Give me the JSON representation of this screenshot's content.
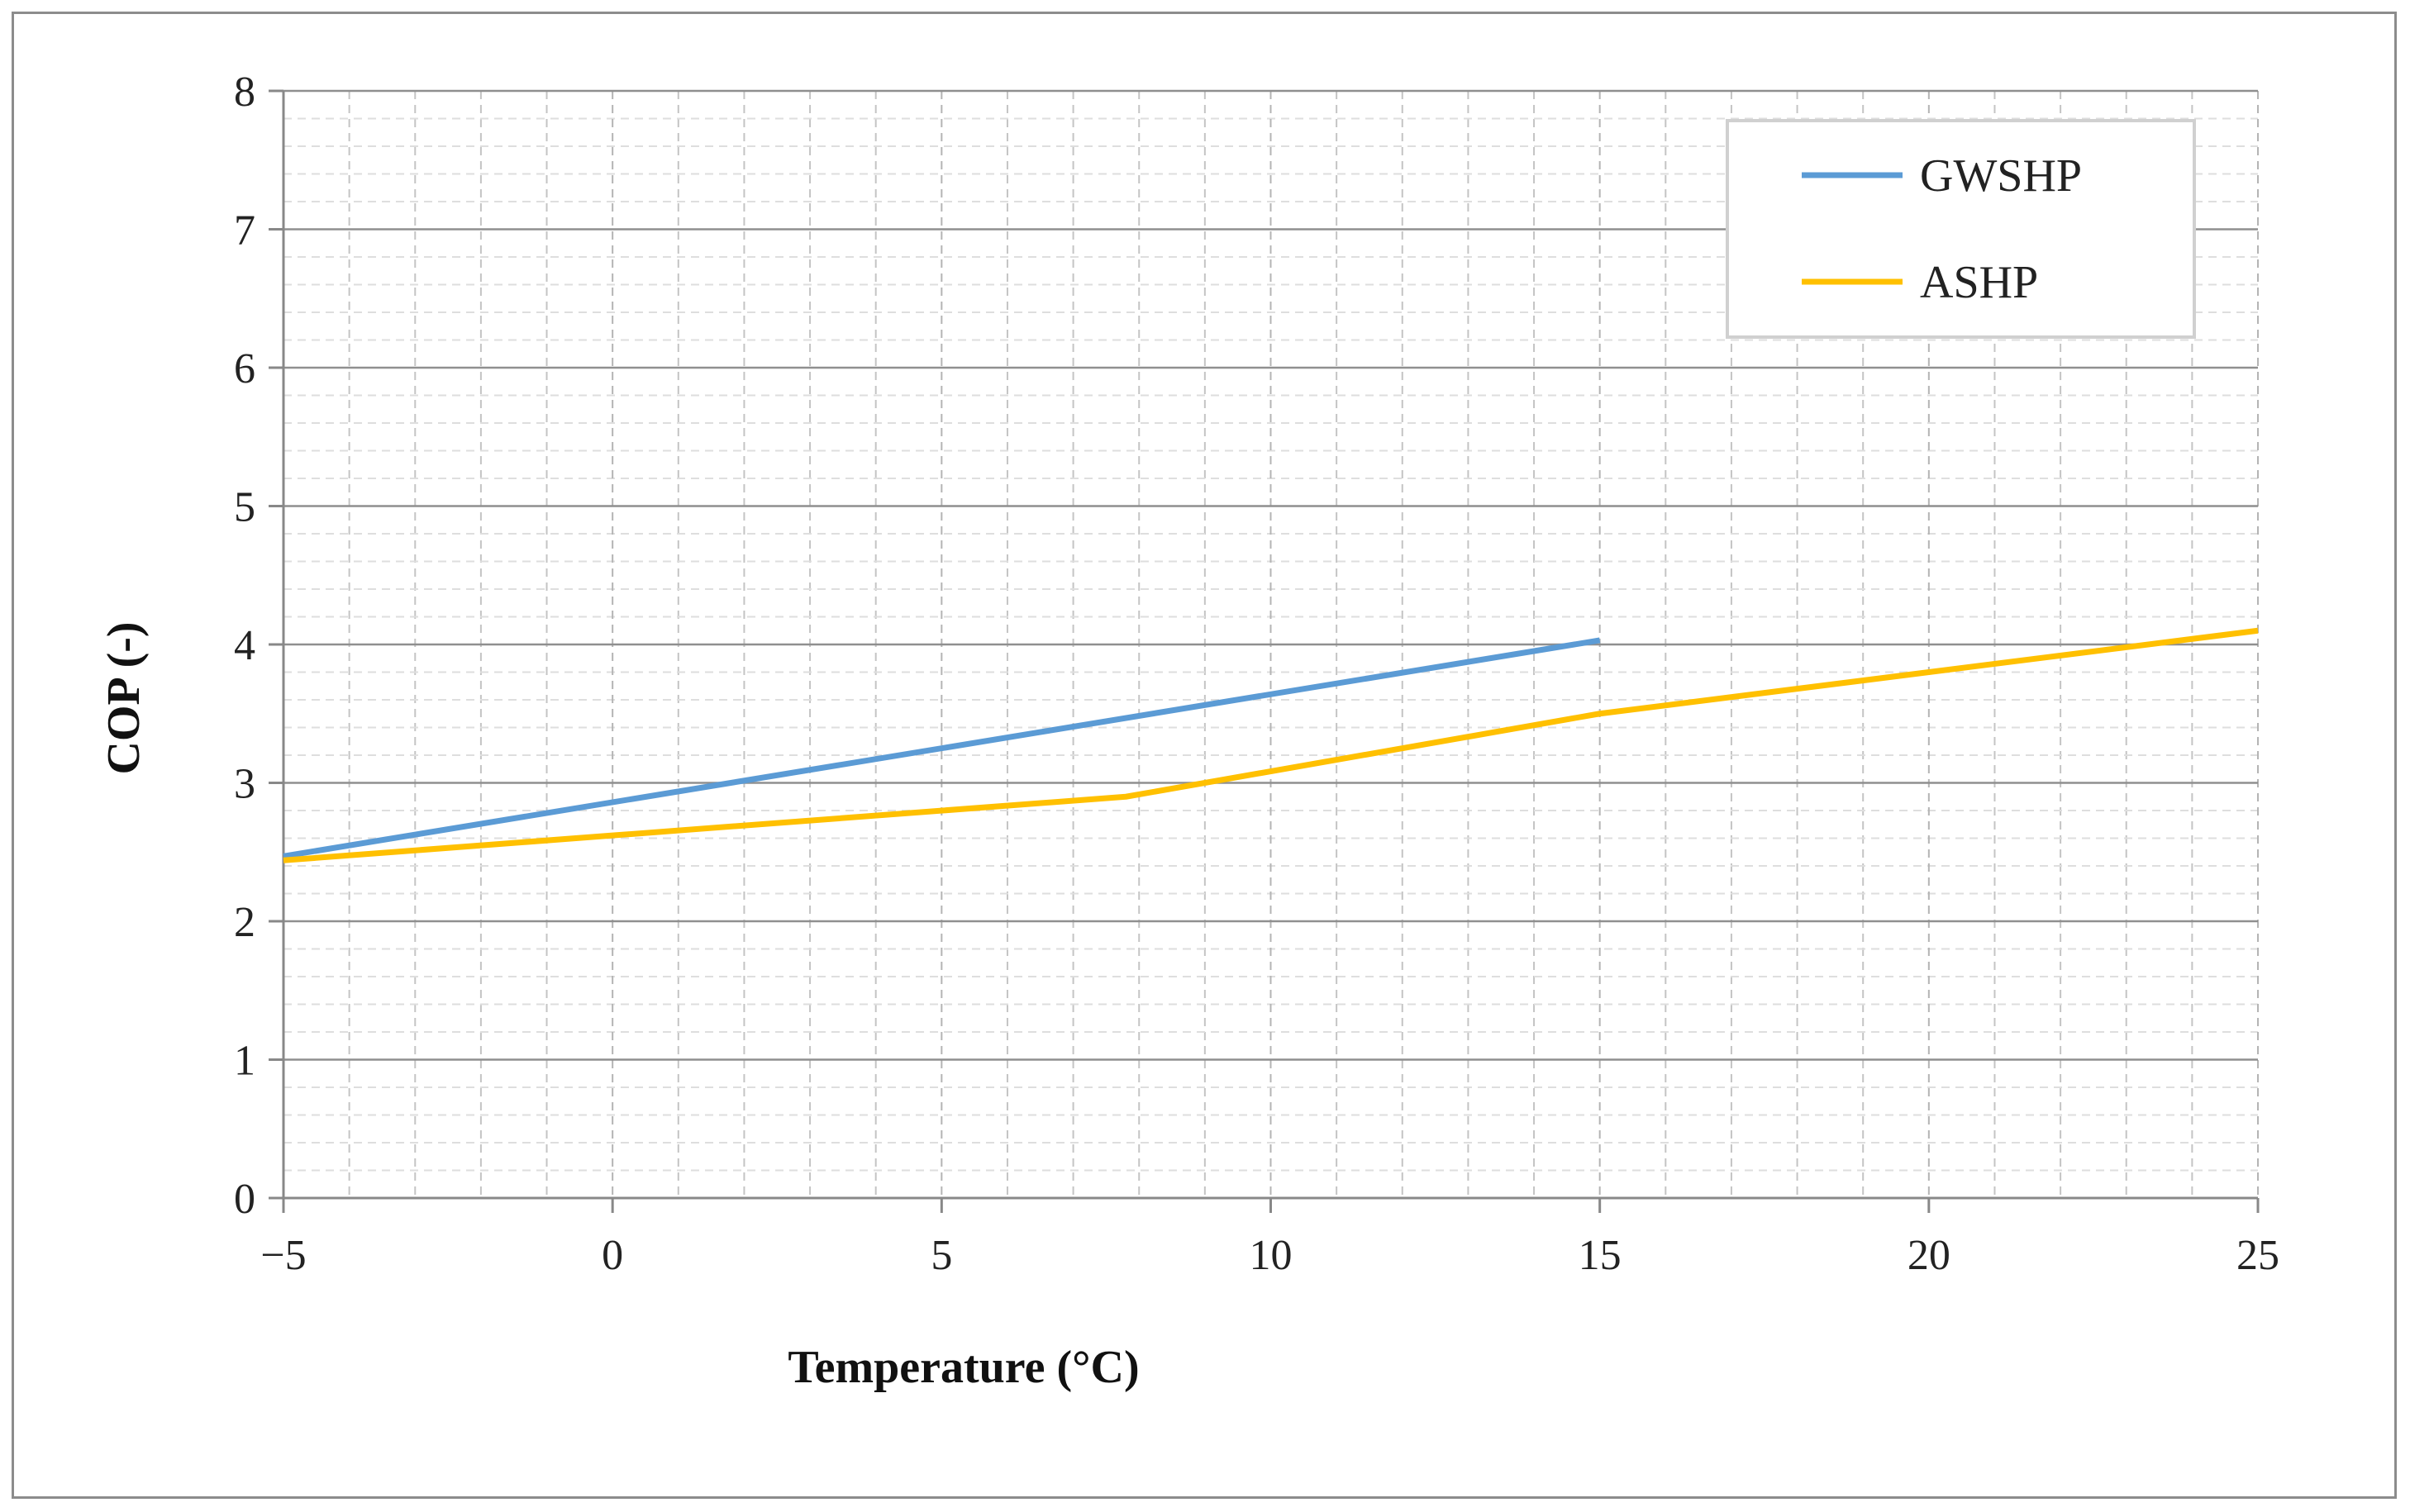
{
  "chart_data": {
    "type": "line",
    "title": "",
    "xlabel": "Temperature (°C)",
    "ylabel": "COP (-)",
    "xlim": [
      -5,
      25
    ],
    "ylim": [
      0,
      8
    ],
    "x_major_ticks": [
      -5,
      0,
      5,
      10,
      15,
      20,
      25
    ],
    "x_tick_labels": [
      "−5",
      "0",
      "5",
      "10",
      "15",
      "20",
      "25"
    ],
    "x_minor_step": 1,
    "y_major_ticks": [
      0,
      1,
      2,
      3,
      4,
      5,
      6,
      7,
      8
    ],
    "y_tick_labels": [
      "0",
      "1",
      "2",
      "3",
      "4",
      "5",
      "6",
      "7",
      "8"
    ],
    "y_minor_step": 0.2,
    "grid": true,
    "legend_position": "top-right",
    "series": [
      {
        "name": "GWSHP",
        "color": "#5b9bd5",
        "x": [
          -5,
          15
        ],
        "y": [
          2.47,
          4.03
        ]
      },
      {
        "name": "ASHP",
        "color": "#ffc000",
        "x": [
          -5,
          0,
          7.8,
          15,
          25
        ],
        "y": [
          2.44,
          2.62,
          2.9,
          3.5,
          4.1
        ]
      }
    ]
  }
}
